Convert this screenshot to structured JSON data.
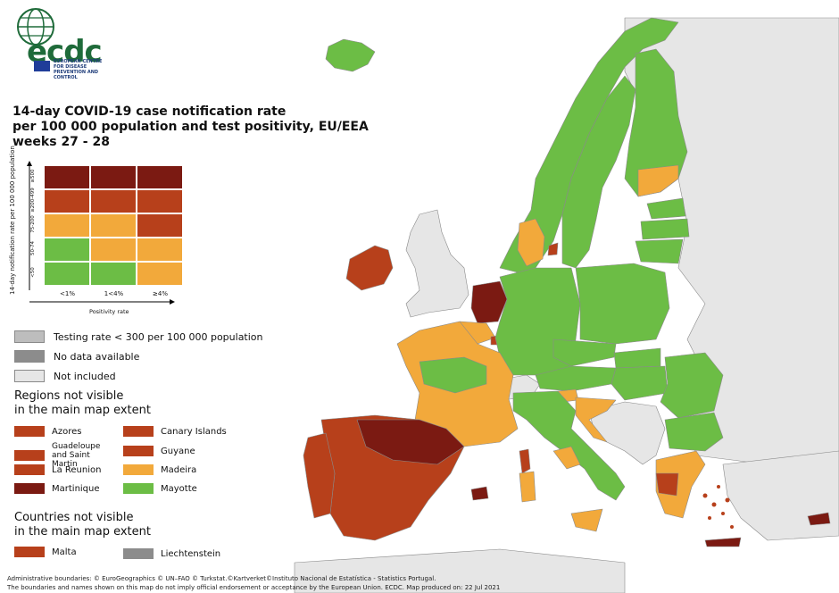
{
  "header": {
    "logo_text": "ecdc",
    "logo_subtitle": "EUROPEAN CENTRE FOR DISEASE PREVENTION AND CONTROL",
    "title_lines": [
      "14-day COVID-19 case notification rate",
      "per 100 000 population and test positivity, EU/EEA",
      "weeks 27 - 28"
    ]
  },
  "matrix_legend": {
    "y_axis_label": "14-day notification rate per 100 000 population",
    "y_ticks": [
      "≥500",
      "≥200-499",
      "75-200",
      "50-74",
      "<50"
    ],
    "x_axis_label": "Positivity rate",
    "x_ticks": [
      "<1%",
      "1<4%",
      "≥4%"
    ],
    "cells": [
      [
        "#7b1a12",
        "#7b1a12",
        "#7b1a12"
      ],
      [
        "#b7401b",
        "#b7401b",
        "#b7401b"
      ],
      [
        "#f2a93b",
        "#f2a93b",
        "#b7401b"
      ],
      [
        "#6cbd45",
        "#f2a93b",
        "#f2a93b"
      ],
      [
        "#6cbd45",
        "#6cbd45",
        "#f2a93b"
      ]
    ]
  },
  "status_legend": [
    {
      "label": "Testing rate < 300 per 100 000 population",
      "color": "#bdbdbd"
    },
    {
      "label": "No data available",
      "color": "#8c8c8c"
    },
    {
      "label": "Not included",
      "color": "#e6e6e6"
    }
  ],
  "regions_not_visible": {
    "heading_lines": [
      "Regions not visible",
      "in the main map extent"
    ],
    "items": [
      {
        "label": "Azores",
        "color": "#b7401b"
      },
      {
        "label": "Canary Islands",
        "color": "#b7401b"
      },
      {
        "label": "Guadeloupe and Saint Martin",
        "color": "#b7401b"
      },
      {
        "label": "Guyane",
        "color": "#b7401b"
      },
      {
        "label": "La Reunion",
        "color": "#b7401b"
      },
      {
        "label": "Madeira",
        "color": "#f2a93b"
      },
      {
        "label": "Martinique",
        "color": "#7b1a12"
      },
      {
        "label": "Mayotte",
        "color": "#6cbd45"
      }
    ]
  },
  "countries_not_visible": {
    "heading_lines": [
      "Countries not visible",
      "in the main map extent"
    ],
    "items": [
      {
        "label": "Malta",
        "color": "#b7401b"
      },
      {
        "label": "Liechtenstein",
        "color": "#8c8c8c"
      }
    ]
  },
  "footer": {
    "line1": "Administrative boundaries: © EuroGeographics © UN–FAO © Turkstat.©Kartverket©Instituto Nacional de Estatística - Statistics Portugal.",
    "line2": "The boundaries and names shown on this map do not imply official endorsement or acceptance by the European Union. ECDC. Map produced on: 22 Jul 2021"
  },
  "colors": {
    "dark_red": "#7b1a12",
    "red": "#b7401b",
    "orange": "#f2a93b",
    "green": "#6cbd45",
    "not_included": "#e6e6e6",
    "border": "#5a5a5a"
  }
}
